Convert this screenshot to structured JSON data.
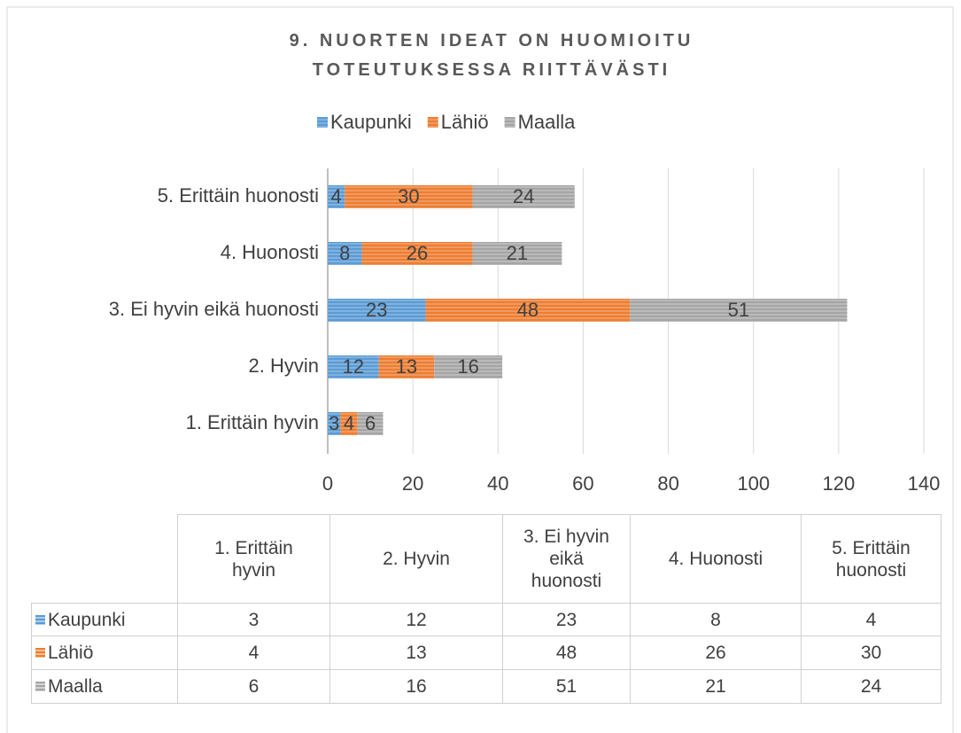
{
  "chart_data": {
    "type": "bar",
    "orientation": "horizontal",
    "stacked": true,
    "title": "9. NUORTEN IDEAT ON HUOMIOITU TOTEUTUKSESSA RIITTÄVÄSTI",
    "categories": [
      "1. Erittäin hyvin",
      "2. Hyvin",
      "3. Ei hyvin eikä huonosti",
      "4. Huonosti",
      "5. Erittäin huonosti"
    ],
    "series": [
      {
        "name": "Kaupunki",
        "color": "#5b9bd5",
        "values": [
          3,
          12,
          23,
          8,
          4
        ]
      },
      {
        "name": "Lähiö",
        "color": "#ed7d31",
        "values": [
          4,
          13,
          48,
          26,
          30
        ]
      },
      {
        "name": "Maalla",
        "color": "#a5a5a5",
        "values": [
          6,
          16,
          51,
          21,
          24
        ]
      }
    ],
    "xlim": [
      0,
      140
    ],
    "xticks": [
      0,
      20,
      40,
      60,
      80,
      100,
      120,
      140
    ],
    "grid": true,
    "legend": "top",
    "data_table": true
  }
}
